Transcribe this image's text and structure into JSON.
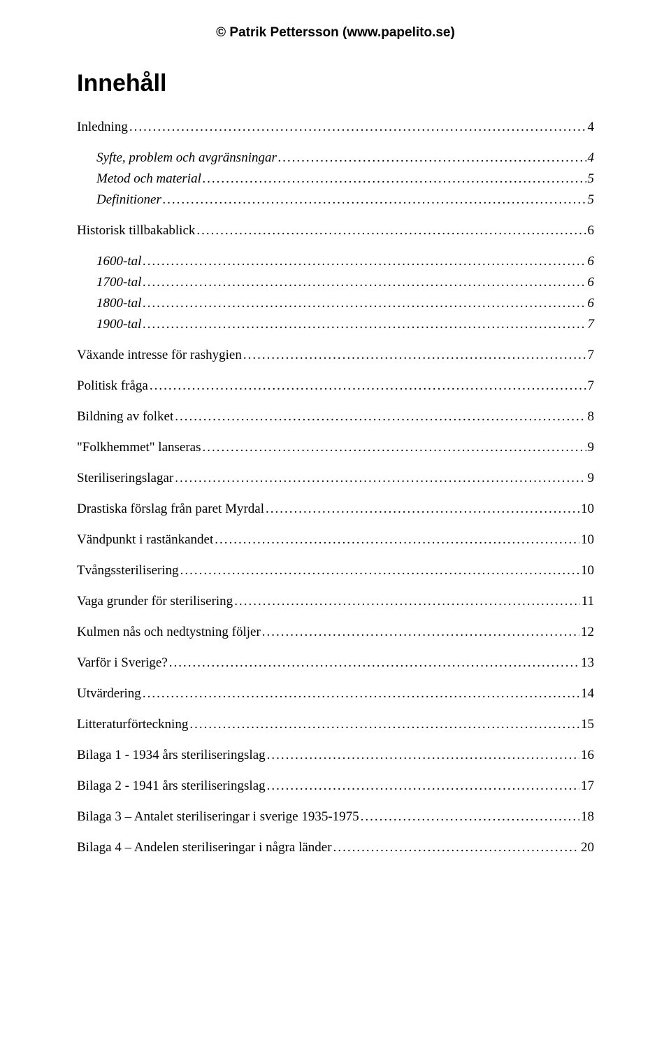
{
  "header": {
    "copyright": "© Patrik Pettersson (www.papelito.se)"
  },
  "title": "Innehåll",
  "toc": [
    {
      "level": 1,
      "label": "Inledning",
      "page": "4"
    },
    {
      "level": 2,
      "label": "Syfte, problem och avgränsningar",
      "page": "4"
    },
    {
      "level": 2,
      "label": "Metod och material",
      "page": "5"
    },
    {
      "level": 2,
      "label": "Definitioner",
      "page": "5",
      "lastSub": true
    },
    {
      "level": 1,
      "label": "Historisk tillbakablick",
      "page": "6"
    },
    {
      "level": 2,
      "label": "1600-tal",
      "page": "6"
    },
    {
      "level": 2,
      "label": "1700-tal",
      "page": "6"
    },
    {
      "level": 2,
      "label": "1800-tal",
      "page": "6"
    },
    {
      "level": 2,
      "label": "1900-tal",
      "page": "7",
      "lastSub": true
    },
    {
      "level": 1,
      "label": "Växande intresse för rashygien",
      "page": "7"
    },
    {
      "level": 1,
      "label": "Politisk fråga",
      "page": "7"
    },
    {
      "level": 1,
      "label": "Bildning av folket",
      "page": "8"
    },
    {
      "level": 1,
      "label": "\"Folkhemmet\" lanseras",
      "page": "9"
    },
    {
      "level": 1,
      "label": "Steriliseringslagar",
      "page": "9"
    },
    {
      "level": 1,
      "label": "Drastiska förslag från paret Myrdal",
      "page": "10"
    },
    {
      "level": 1,
      "label": "Vändpunkt i rastänkandet",
      "page": "10"
    },
    {
      "level": 1,
      "label": "Tvångssterilisering",
      "page": "10"
    },
    {
      "level": 1,
      "label": "Vaga grunder för sterilisering",
      "page": "11"
    },
    {
      "level": 1,
      "label": "Kulmen nås och nedtystning följer",
      "page": "12"
    },
    {
      "level": 1,
      "label": "Varför i Sverige?",
      "page": "13"
    },
    {
      "level": 1,
      "label": "Utvärdering",
      "page": "14"
    },
    {
      "level": 1,
      "label": "Litteraturförteckning",
      "page": "15"
    },
    {
      "level": 1,
      "label": "Bilaga 1 - 1934 års steriliseringslag",
      "page": "16"
    },
    {
      "level": 1,
      "label": "Bilaga 2 - 1941 års steriliseringslag",
      "page": "17"
    },
    {
      "level": 1,
      "label": "Bilaga 3 – Antalet steriliseringar i sverige 1935-1975",
      "page": "18"
    },
    {
      "level": 1,
      "label": "Bilaga 4 – Andelen steriliseringar i några länder",
      "page": "20"
    }
  ]
}
